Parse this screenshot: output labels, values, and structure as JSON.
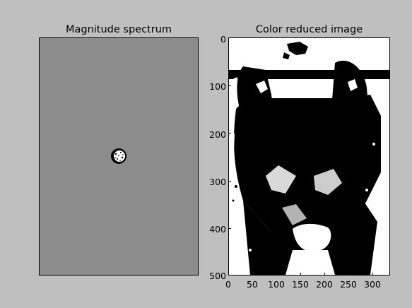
{
  "figure": {
    "background": "#bfbfbf"
  },
  "left_panel": {
    "title": "Magnitude spectrum",
    "background": "#8c8c8c"
  },
  "right_panel": {
    "title": "Color reduced image",
    "xticks": [
      "0",
      "50",
      "100",
      "150",
      "200",
      "250",
      "300"
    ],
    "yticks": [
      "0",
      "100",
      "200",
      "300",
      "400",
      "500"
    ],
    "xlim": [
      0,
      336
    ],
    "ylim": [
      500,
      0
    ]
  }
}
